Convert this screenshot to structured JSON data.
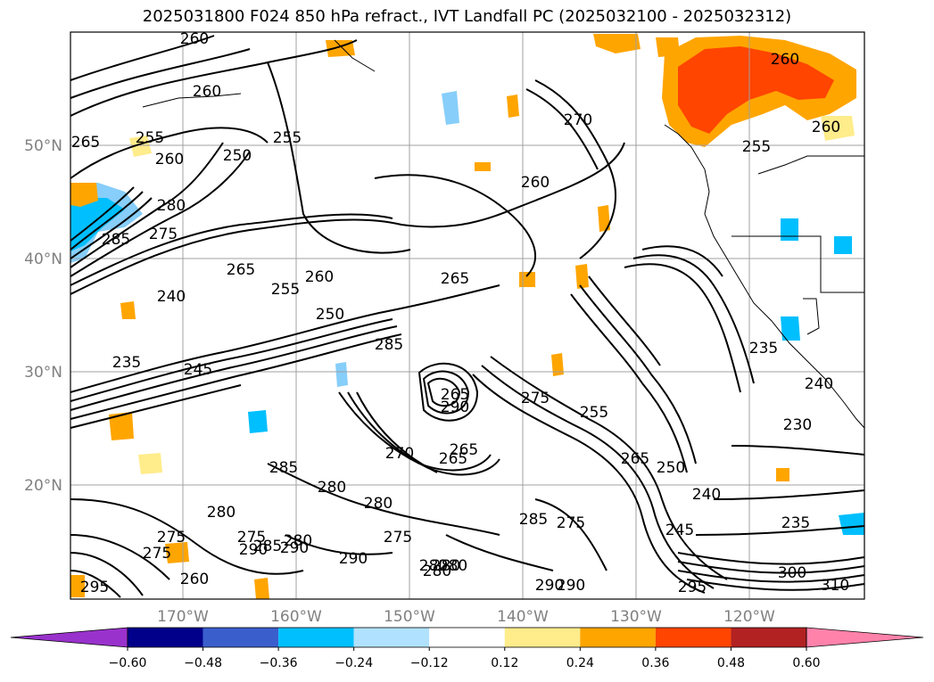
{
  "title": "2025031800 F024 850 hPa refract., IVT Landfall PC (2025032100 - 2025032312)",
  "lat_labels": [
    "50°N",
    "40°N",
    "30°N",
    "20°N"
  ],
  "lon_labels": [
    "170°W",
    "160°W",
    "150°W",
    "140°W",
    "130°W",
    "120°W"
  ],
  "contour_labels": [
    "260",
    "260",
    "265",
    "255",
    "260",
    "255",
    "250",
    "270",
    "260",
    "260",
    "255",
    "260",
    "280",
    "275",
    "285",
    "265",
    "260",
    "255",
    "240",
    "250",
    "265",
    "285",
    "235",
    "245",
    "290",
    "265",
    "275",
    "270",
    "265",
    "265",
    "255",
    "250",
    "240",
    "230",
    "235",
    "240",
    "245",
    "235",
    "285",
    "280",
    "280",
    "280",
    "275",
    "285",
    "275",
    "280",
    "275",
    "290",
    "285",
    "280",
    "275",
    "265",
    "275",
    "280",
    "260",
    "290",
    "280",
    "290",
    "280",
    "290",
    "290",
    "295",
    "300",
    "310",
    "295"
  ],
  "colorbar": {
    "tick_labels": [
      "−0.60",
      "−0.48",
      "−0.36",
      "−0.24",
      "−0.12",
      "0.12",
      "0.24",
      "0.36",
      "0.48",
      "0.60"
    ],
    "colors": [
      "#9932cc",
      "#00008b",
      "#3a5fcd",
      "#00bfff",
      "#b0e2ff",
      "#ffffff",
      "#ffec8b",
      "#ffa500",
      "#ff4500",
      "#b22222",
      "#ff82ab"
    ]
  },
  "colors": {
    "shade_yellow": "#ffec8b",
    "shade_orange": "#ffa500",
    "shade_red": "#ff4500",
    "shade_lightblue": "#87cefa",
    "shade_blue": "#00bfff",
    "grid": "#a0a0a0"
  }
}
